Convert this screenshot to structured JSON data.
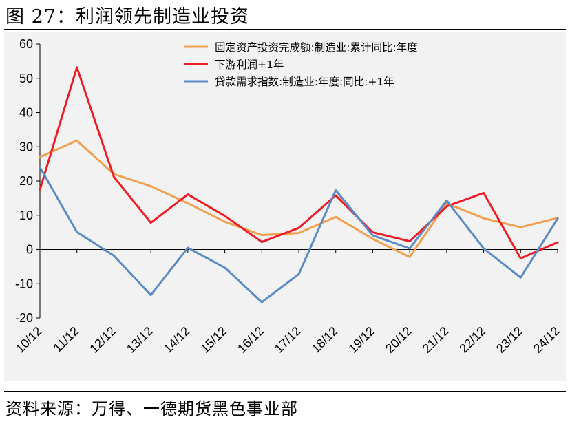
{
  "figure": {
    "title": "图 27：利润领先制造业投资",
    "source": "资料来源：万得、一德期货黑色事业部"
  },
  "chart_data": {
    "type": "line",
    "title": "",
    "xlabel": "",
    "ylabel": "",
    "ylim": [
      -20,
      60
    ],
    "yticks": [
      60,
      50,
      40,
      30,
      20,
      10,
      0,
      -10,
      -20
    ],
    "grid": false,
    "legend_position": "top-right",
    "categories": [
      "10/12",
      "11/12",
      "12/12",
      "13/12",
      "14/12",
      "15/12",
      "16/12",
      "17/12",
      "18/12",
      "19/12",
      "20/12",
      "21/12",
      "22/12",
      "23/12",
      "24/12"
    ],
    "series": [
      {
        "name": "固定资产投资完成额:制造业:累计同比:年度",
        "color": "#f0a050",
        "values": [
          27,
          31.8,
          22,
          18.5,
          13.5,
          8.1,
          4.2,
          4.8,
          9.5,
          3.1,
          -2.2,
          13.5,
          9.1,
          6.5,
          9.2
        ]
      },
      {
        "name": "下游利润+1年",
        "color": "#ee1c25",
        "values": [
          17.5,
          53.2,
          21.2,
          7.8,
          16.1,
          9.8,
          2.2,
          6.3,
          15.8,
          5,
          2.4,
          12.6,
          16.5,
          -2.6,
          2.1
        ]
      },
      {
        "name": "贷款需求指数:制造业:年度:同比:+1年",
        "color": "#5b8bc5",
        "values": [
          24,
          5.1,
          -1.8,
          -13.3,
          0.5,
          -5.3,
          -15.4,
          -7.2,
          17.3,
          4.1,
          0.3,
          14.3,
          0.3,
          -8.2,
          9
        ]
      }
    ]
  }
}
